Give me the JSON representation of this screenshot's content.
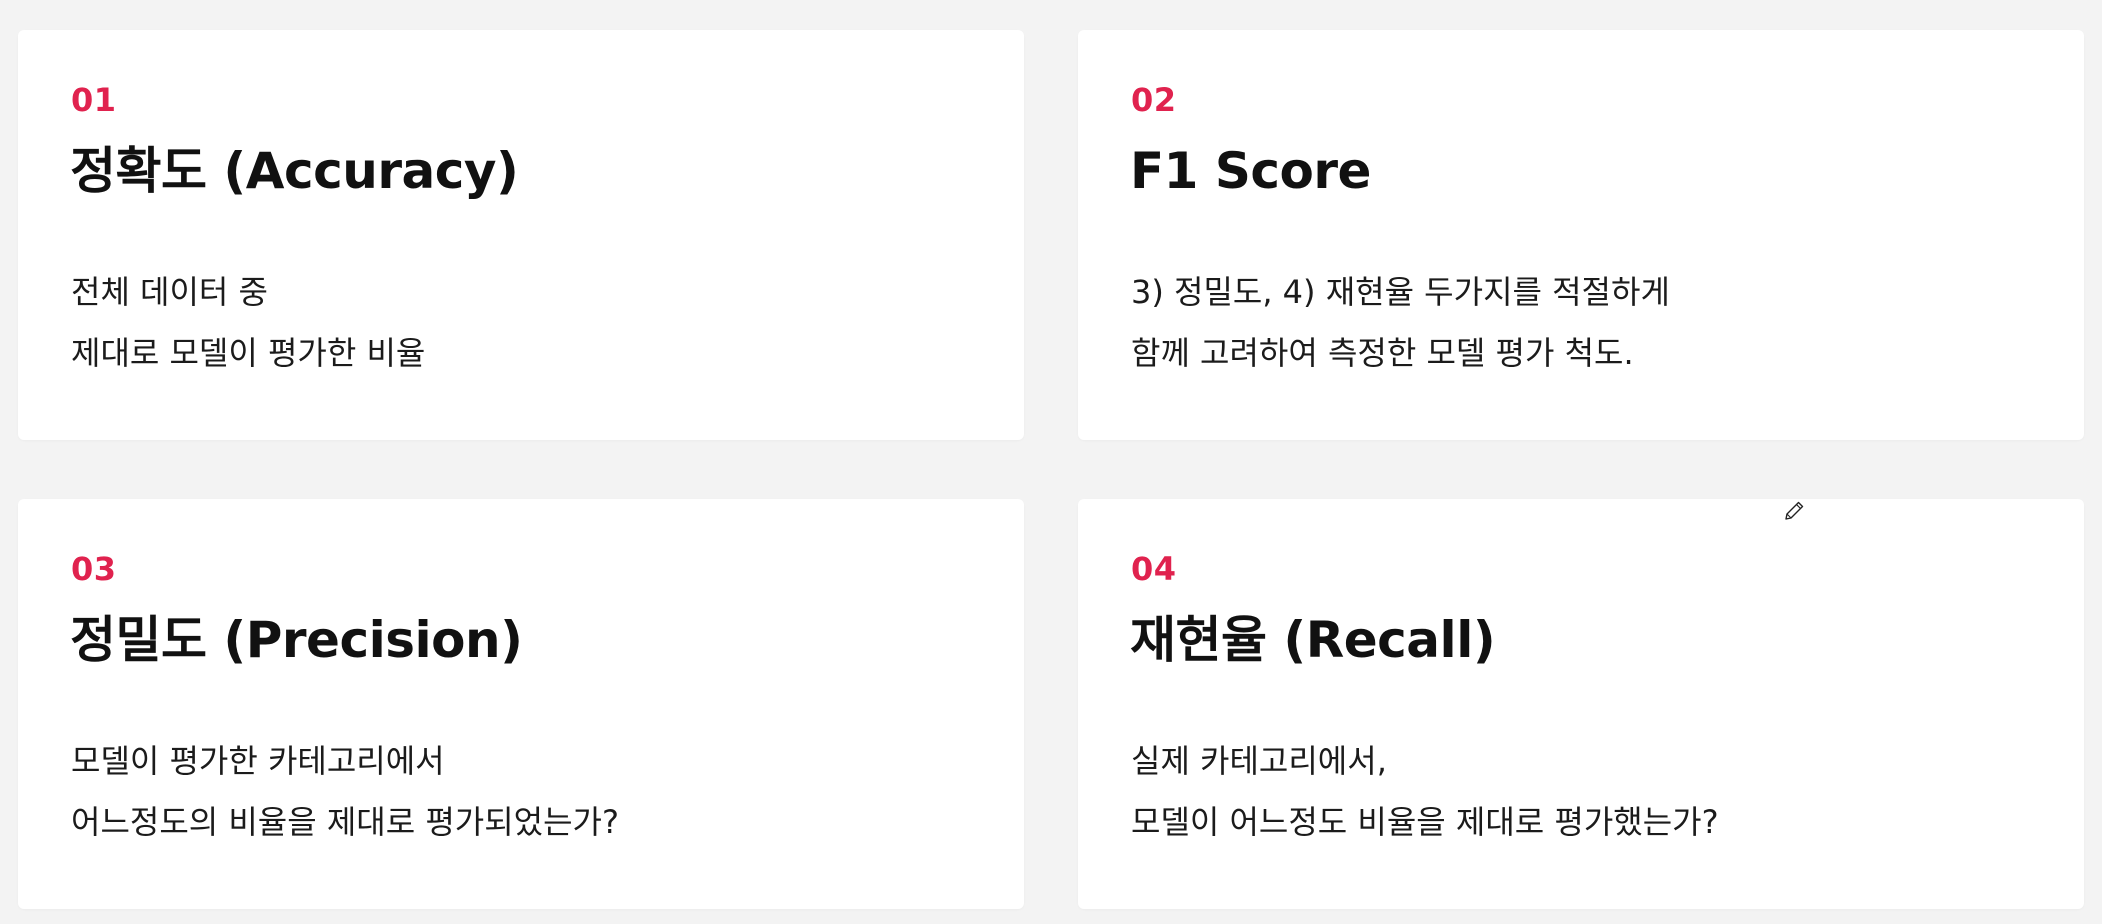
{
  "cards": [
    {
      "number": "01",
      "title": "정확도 (Accuracy)",
      "lines": [
        "전체 데이터 중",
        "제대로 모델이 평가한 비율"
      ]
    },
    {
      "number": "02",
      "title": "F1 Score",
      "lines": [
        "3) 정밀도, 4) 재현율 두가지를 적절하게",
        "함께 고려하여 측정한 모델 평가 척도."
      ]
    },
    {
      "number": "03",
      "title": "정밀도 (Precision)",
      "lines": [
        "모델이 평가한 카테고리에서",
        "어느정도의 비율을 제대로 평가되었는가?"
      ]
    },
    {
      "number": "04",
      "title": "재현율 (Recall)",
      "lines": [
        "실제 카테고리에서,",
        "모델이 어느정도 비율을 제대로 평가했는가?"
      ]
    }
  ],
  "colors": {
    "accent": "#e0224e",
    "background": "#f3f3f3",
    "card": "#ffffff",
    "text": "#111111"
  },
  "icons": {
    "cursor": "pencil-icon"
  }
}
